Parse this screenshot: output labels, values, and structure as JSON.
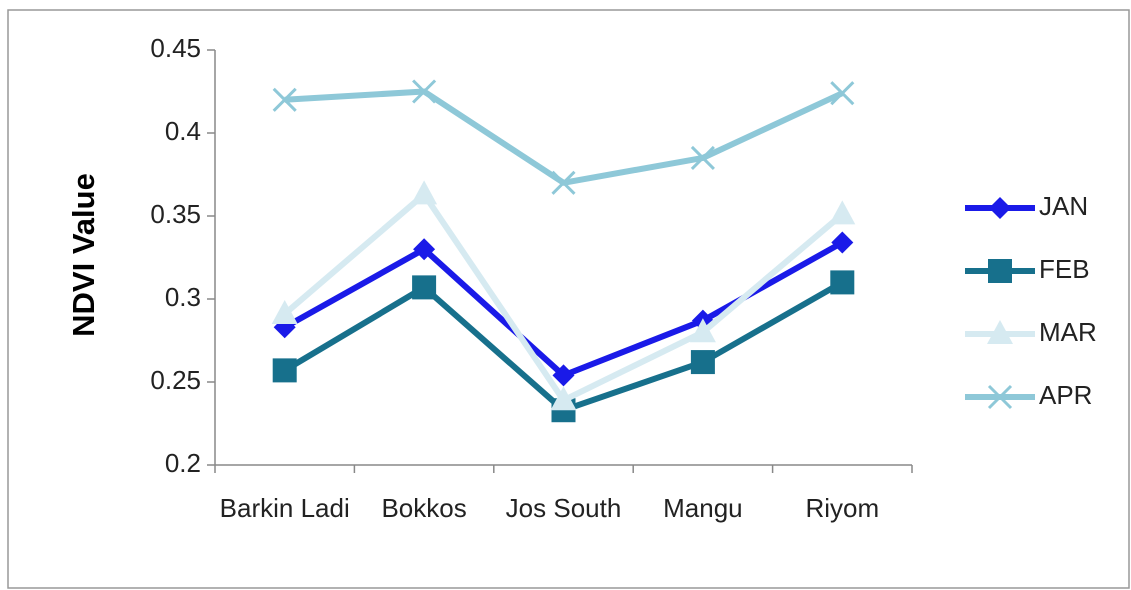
{
  "chart_data": {
    "type": "line",
    "y_label": "NDVI Value",
    "categories": [
      "Barkin Ladi",
      "Bokkos",
      "Jos South",
      "Mangu",
      "Riyom"
    ],
    "series": [
      {
        "name": "JAN",
        "color": "#1a1ae8",
        "marker": "diamond",
        "values": [
          0.283,
          0.33,
          0.254,
          0.287,
          0.334
        ]
      },
      {
        "name": "FEB",
        "color": "#17708c",
        "marker": "square",
        "values": [
          0.257,
          0.307,
          0.233,
          0.262,
          0.31
        ]
      },
      {
        "name": "MAR",
        "color": "#d6eaf1",
        "marker": "triangle",
        "values": [
          0.291,
          0.363,
          0.239,
          0.28,
          0.351
        ]
      },
      {
        "name": "APR",
        "color": "#8ec8d8",
        "marker": "x",
        "values": [
          0.42,
          0.425,
          0.37,
          0.385,
          0.424
        ]
      }
    ],
    "ylim": [
      0.2,
      0.45
    ],
    "yticks": [
      0.2,
      0.25,
      0.3,
      0.35,
      0.4,
      0.45
    ],
    "legend": "right"
  }
}
